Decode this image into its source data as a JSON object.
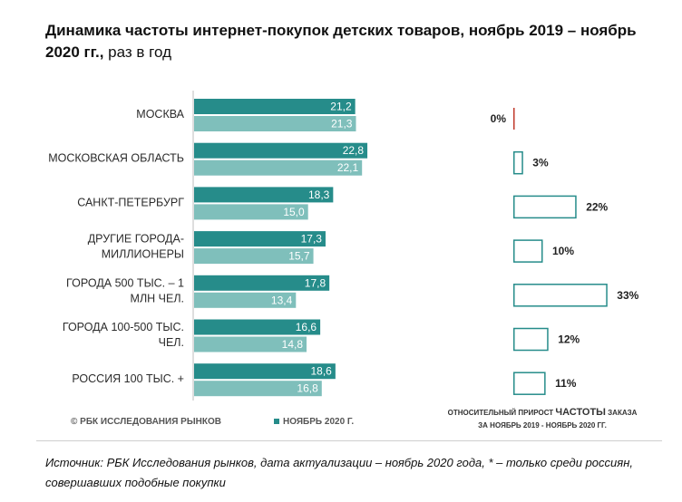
{
  "title": {
    "bold": "Динамика частоты интернет-покупок детских товаров, ноябрь 2019 – ноябрь 2020 гг.,",
    "normal": " раз в год"
  },
  "copyright": "© РБК ИССЛЕДОВАНИЯ РЫНКОВ",
  "legend_label": "НОЯБРЬ 2020 Г.",
  "growth_caption": {
    "part1": "ОТНОСИТЕЛЬНЫЙ ПРИРОСТ ",
    "part2": "ЧАСТОТЫ",
    "part3": " ЗАКАЗА",
    "line2": "ЗА НОЯБРЬ 2019 - НОЯБРЬ 2020 ГГ."
  },
  "footnote": "Источник: РБК Исследования рынков, дата актуализации – ноябрь 2020 года, * – только среди россиян, совершавших подобные покупки",
  "chart_data": [
    {
      "type": "bar",
      "orientation": "horizontal",
      "categories": [
        [
          "МОСКВА"
        ],
        [
          "МОСКОВСКАЯ ОБЛАСТЬ"
        ],
        [
          "САНКТ-ПЕТЕРБУРГ"
        ],
        [
          "ДРУГИЕ ГОРОДА-",
          "МИЛЛИОНЕРЫ"
        ],
        [
          "ГОРОДА 500 ТЫС. – 1",
          "МЛН ЧЕЛ."
        ],
        [
          "ГОРОДА 100-500 ТЫС.",
          "ЧЕЛ."
        ],
        [
          "РОССИЯ 100 ТЫС. +"
        ]
      ],
      "series": [
        {
          "name": "НОЯБРЬ 2020 Г.",
          "values": [
            21.2,
            22.8,
            18.3,
            17.3,
            17.8,
            16.6,
            18.6
          ],
          "labels": [
            "21,2",
            "22,8",
            "18,3",
            "17,3",
            "17,8",
            "16,6",
            "18,6"
          ],
          "color": "#268c8a"
        },
        {
          "values": [
            21.3,
            22.1,
            15.0,
            15.7,
            13.4,
            14.8,
            16.8
          ],
          "labels": [
            "21,3",
            "22,1",
            "15,0",
            "15,7",
            "13,4",
            "14,8",
            "16,8"
          ],
          "color": "#7fbfbb"
        }
      ]
    },
    {
      "type": "bar",
      "orientation": "horizontal",
      "values": [
        0,
        3,
        22,
        10,
        33,
        12,
        11
      ],
      "labels": [
        "0%",
        "3%",
        "22%",
        "10%",
        "33%",
        "12%",
        "11%"
      ],
      "bar_style": "outline",
      "color": "#268c8a",
      "zero_color": "#c0392b"
    }
  ]
}
